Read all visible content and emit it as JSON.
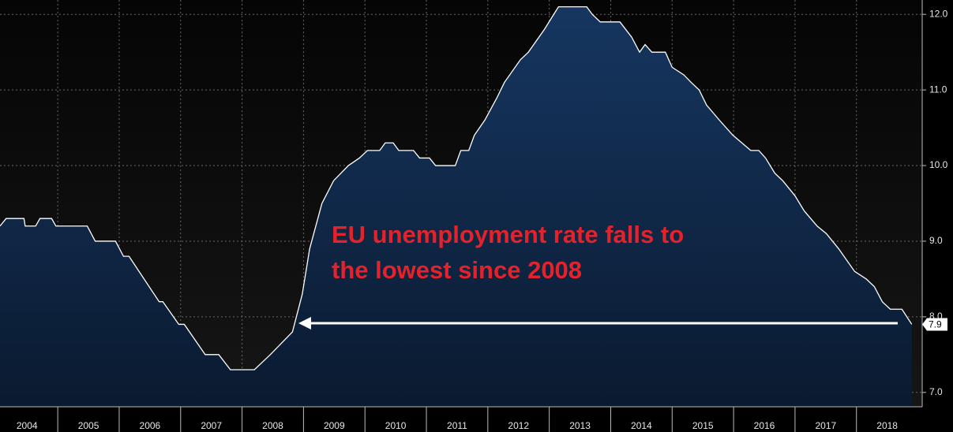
{
  "chart_data": {
    "type": "area",
    "annotation": [
      "EU unemployment rate falls to",
      "the lowest since 2008"
    ],
    "x": [
      2004.06,
      2004.16,
      2004.45,
      2004.47,
      2004.64,
      2004.71,
      2004.9,
      2004.97,
      2005.48,
      2005.61,
      2005.94,
      2006.07,
      2006.16,
      2006.65,
      2006.71,
      2006.97,
      2007.06,
      2007.4,
      2007.62,
      2007.81,
      2008.2,
      2008.33,
      2008.46,
      2008.82,
      2008.98,
      2009.1,
      2009.3,
      2009.49,
      2009.73,
      2009.91,
      2010.04,
      2010.24,
      2010.33,
      2010.46,
      2010.55,
      2010.79,
      2010.89,
      2011.05,
      2011.15,
      2011.47,
      2011.56,
      2011.69,
      2011.78,
      2011.95,
      2012.15,
      2012.27,
      2012.53,
      2012.66,
      2012.92,
      2013.15,
      2013.61,
      2013.7,
      2013.83,
      2014.15,
      2014.34,
      2014.47,
      2014.56,
      2014.67,
      2014.89,
      2015.0,
      2015.19,
      2015.31,
      2015.44,
      2015.56,
      2015.77,
      2015.99,
      2016.28,
      2016.41,
      2016.52,
      2016.67,
      2016.8,
      2017.0,
      2017.15,
      2017.36,
      2017.51,
      2017.71,
      2017.97,
      2018.16,
      2018.29,
      2018.42,
      2018.55,
      2018.74,
      2018.9
    ],
    "values": [
      9.2,
      9.3,
      9.3,
      9.2,
      9.2,
      9.3,
      9.3,
      9.2,
      9.2,
      9.0,
      9.0,
      8.8,
      8.8,
      8.2,
      8.2,
      7.9,
      7.9,
      7.5,
      7.5,
      7.3,
      7.3,
      7.4,
      7.5,
      7.8,
      8.3,
      8.9,
      9.5,
      9.8,
      10.0,
      10.1,
      10.2,
      10.2,
      10.3,
      10.3,
      10.2,
      10.2,
      10.1,
      10.1,
      10.0,
      10.0,
      10.2,
      10.2,
      10.4,
      10.6,
      10.9,
      11.1,
      11.4,
      11.5,
      11.8,
      12.1,
      12.1,
      12.0,
      11.9,
      11.9,
      11.7,
      11.5,
      11.6,
      11.5,
      11.5,
      11.3,
      11.2,
      11.1,
      11.0,
      10.8,
      10.6,
      10.4,
      10.2,
      10.2,
      10.1,
      9.9,
      9.8,
      9.6,
      9.4,
      9.2,
      9.1,
      8.9,
      8.6,
      8.5,
      8.4,
      8.2,
      8.1,
      8.1,
      7.9
    ],
    "line_color": "#ffffff",
    "fill_color": "#0f2746",
    "xlim": [
      2004.06,
      2019.07
    ],
    "xticks": [
      {
        "value": 2004,
        "label": "2004"
      },
      {
        "value": 2005,
        "label": "2005"
      },
      {
        "value": 2006,
        "label": "2006"
      },
      {
        "value": 2007,
        "label": "2007"
      },
      {
        "value": 2008,
        "label": "2008"
      },
      {
        "value": 2009,
        "label": "2009"
      },
      {
        "value": 2010,
        "label": "2010"
      },
      {
        "value": 2011,
        "label": "2011"
      },
      {
        "value": 2012,
        "label": "2012"
      },
      {
        "value": 2013,
        "label": "2013"
      },
      {
        "value": 2014,
        "label": "2014"
      },
      {
        "value": 2015,
        "label": "2015"
      },
      {
        "value": 2016,
        "label": "2016"
      },
      {
        "value": 2017,
        "label": "2017"
      },
      {
        "value": 2018,
        "label": "2018"
      }
    ],
    "ylim": [
      6.81,
      12.19
    ],
    "yticks": [
      {
        "value": 7,
        "label": "7.0"
      },
      {
        "value": 8,
        "label": "8.0"
      },
      {
        "value": 9,
        "label": "9.0"
      },
      {
        "value": 10,
        "label": "10.0"
      },
      {
        "value": 11,
        "label": "11.0"
      },
      {
        "value": 12,
        "label": "12.0"
      }
    ],
    "grid": true
  }
}
